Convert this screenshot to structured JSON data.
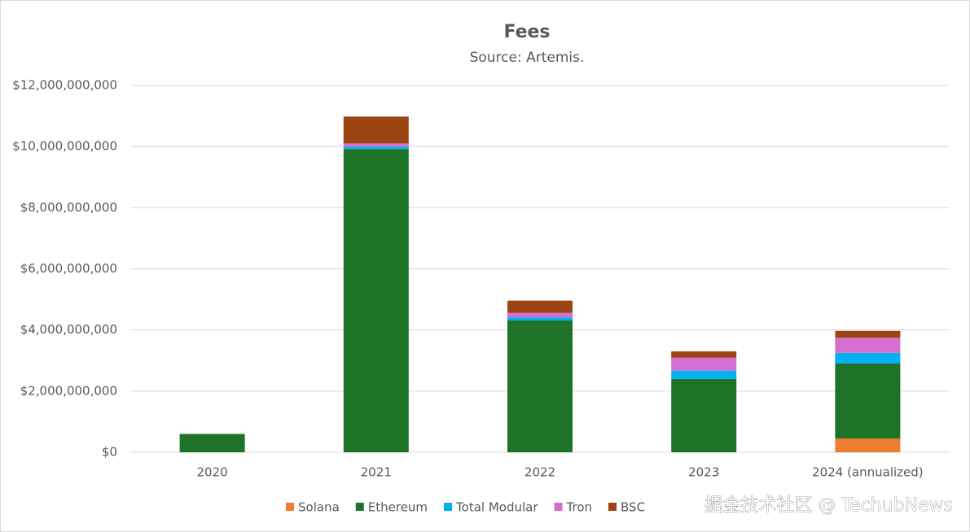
{
  "chart_data": {
    "type": "stacked-bar",
    "title": "Fees",
    "subtitle": "Source: Artemis.",
    "categories": [
      "2020",
      "2021",
      "2022",
      "2023",
      "2024 (annualized)"
    ],
    "series": [
      {
        "name": "Solana",
        "color": "#ed7d31",
        "values": [
          0,
          0,
          0,
          0,
          450000000
        ]
      },
      {
        "name": "Ethereum",
        "color": "#1e7326",
        "values": [
          600000000,
          9920000000,
          4310000000,
          2400000000,
          2450000000
        ]
      },
      {
        "name": "Total Modular",
        "color": "#00b0f0",
        "values": [
          0,
          80000000,
          100000000,
          270000000,
          350000000
        ]
      },
      {
        "name": "Tron",
        "color": "#d46fd0",
        "values": [
          0,
          100000000,
          150000000,
          430000000,
          500000000
        ]
      },
      {
        "name": "BSC",
        "color": "#9c4512",
        "values": [
          0,
          880000000,
          400000000,
          200000000,
          220000000
        ]
      }
    ],
    "ylim": [
      0,
      12000000000
    ],
    "yticks": [
      {
        "value": 0,
        "label": "$0"
      },
      {
        "value": 2000000000,
        "label": "$2,000,000,000"
      },
      {
        "value": 4000000000,
        "label": "$4,000,000,000"
      },
      {
        "value": 6000000000,
        "label": "$6,000,000,000"
      },
      {
        "value": 8000000000,
        "label": "$8,000,000,000"
      },
      {
        "value": 10000000000,
        "label": "$10,000,000,000"
      },
      {
        "value": 12000000000,
        "label": "$12,000,000,000"
      }
    ],
    "grid": true,
    "watermark": "掘金技术社区 @ TechubNews"
  }
}
